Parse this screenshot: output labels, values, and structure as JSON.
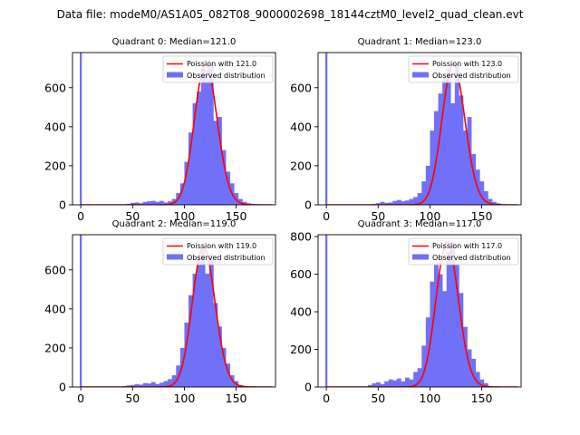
{
  "figure": {
    "suptitle": "Data file: modeM0/AS1A05_082T08_9000002698_18144cztM0_level2_quad_clean.evt"
  },
  "colors": {
    "poisson": "#ff0000",
    "observed": "#7070f8",
    "axes": "#000000",
    "background": "#ffffff"
  },
  "chart_data": [
    {
      "type": "bar",
      "title": "Quadrant 0: Median=121.0",
      "xlim": [
        -8,
        188
      ],
      "ylim": [
        0,
        780
      ],
      "xticks": [
        0,
        50,
        100,
        150
      ],
      "yticks": [
        0,
        200,
        400,
        600
      ],
      "legend": {
        "placement": "top-right",
        "poisson": "Poission with 121.0",
        "observed": "Observed distribution"
      },
      "median": 121.0,
      "bin_width": 4,
      "zero_bin": {
        "x": 0,
        "value": 780
      },
      "hist_x": [
        44,
        48,
        52,
        56,
        60,
        64,
        68,
        72,
        76,
        80,
        84,
        88,
        92,
        96,
        100,
        104,
        108,
        112,
        116,
        120,
        124,
        128,
        132,
        136,
        140,
        144,
        148,
        152,
        156,
        160,
        164
      ],
      "hist_values": [
        5,
        10,
        12,
        8,
        15,
        18,
        20,
        15,
        20,
        12,
        18,
        30,
        60,
        110,
        220,
        370,
        520,
        580,
        700,
        690,
        720,
        430,
        450,
        280,
        170,
        110,
        60,
        30,
        15,
        8,
        5
      ]
    },
    {
      "type": "bar",
      "title": "Quadrant 1: Median=123.0",
      "xlim": [
        -8,
        188
      ],
      "ylim": [
        0,
        780
      ],
      "xticks": [
        0,
        50,
        100,
        150
      ],
      "yticks": [
        0,
        200,
        400,
        600
      ],
      "legend": {
        "placement": "top-right",
        "poisson": "Poission with 123.0",
        "observed": "Observed distribution"
      },
      "median": 123.0,
      "bin_width": 4,
      "zero_bin": {
        "x": 0,
        "value": 780
      },
      "hist_x": [
        44,
        48,
        52,
        56,
        60,
        64,
        68,
        72,
        76,
        80,
        84,
        88,
        92,
        96,
        100,
        104,
        108,
        112,
        116,
        120,
        124,
        128,
        132,
        136,
        140,
        144,
        148,
        152,
        156,
        160,
        164
      ],
      "hist_values": [
        5,
        8,
        15,
        10,
        12,
        20,
        25,
        18,
        22,
        30,
        40,
        60,
        120,
        200,
        380,
        480,
        570,
        650,
        700,
        520,
        720,
        560,
        380,
        450,
        260,
        180,
        120,
        70,
        30,
        15,
        8
      ]
    },
    {
      "type": "bar",
      "title": "Quadrant 2: Median=119.0",
      "xlim": [
        -8,
        188
      ],
      "ylim": [
        0,
        780
      ],
      "xticks": [
        0,
        50,
        100,
        150
      ],
      "yticks": [
        0,
        200,
        400,
        600
      ],
      "legend": {
        "placement": "top-right",
        "poisson": "Poission with 119.0",
        "observed": "Observed distribution"
      },
      "median": 119.0,
      "bin_width": 4,
      "zero_bin": {
        "x": 0,
        "value": 780
      },
      "hist_x": [
        40,
        44,
        48,
        52,
        56,
        60,
        64,
        68,
        72,
        76,
        80,
        84,
        88,
        92,
        96,
        100,
        104,
        108,
        112,
        116,
        120,
        124,
        128,
        132,
        136,
        140,
        144,
        148,
        152,
        156
      ],
      "hist_values": [
        5,
        8,
        10,
        15,
        12,
        20,
        18,
        25,
        15,
        22,
        30,
        40,
        60,
        110,
        200,
        330,
        470,
        580,
        650,
        720,
        580,
        680,
        430,
        310,
        200,
        120,
        60,
        30,
        10,
        5
      ]
    },
    {
      "type": "bar",
      "title": "Quadrant 3: Median=117.0",
      "xlim": [
        -8,
        188
      ],
      "ylim": [
        0,
        810
      ],
      "xticks": [
        0,
        50,
        100,
        150
      ],
      "yticks": [
        0,
        200,
        400,
        600,
        800
      ],
      "legend": {
        "placement": "top-right",
        "poisson": "Poission with 117.0",
        "observed": "Observed distribution"
      },
      "median": 117.0,
      "bin_width": 4,
      "zero_bin": {
        "x": 0,
        "value": 810
      },
      "hist_x": [
        40,
        44,
        48,
        52,
        56,
        60,
        64,
        68,
        72,
        76,
        80,
        84,
        88,
        92,
        96,
        100,
        104,
        108,
        112,
        116,
        120,
        124,
        128,
        132,
        136,
        140,
        144,
        148,
        152,
        156
      ],
      "hist_values": [
        10,
        20,
        25,
        15,
        30,
        40,
        35,
        45,
        30,
        50,
        40,
        80,
        100,
        220,
        370,
        560,
        650,
        600,
        510,
        720,
        770,
        650,
        500,
        320,
        200,
        150,
        80,
        40,
        20,
        5
      ]
    }
  ]
}
